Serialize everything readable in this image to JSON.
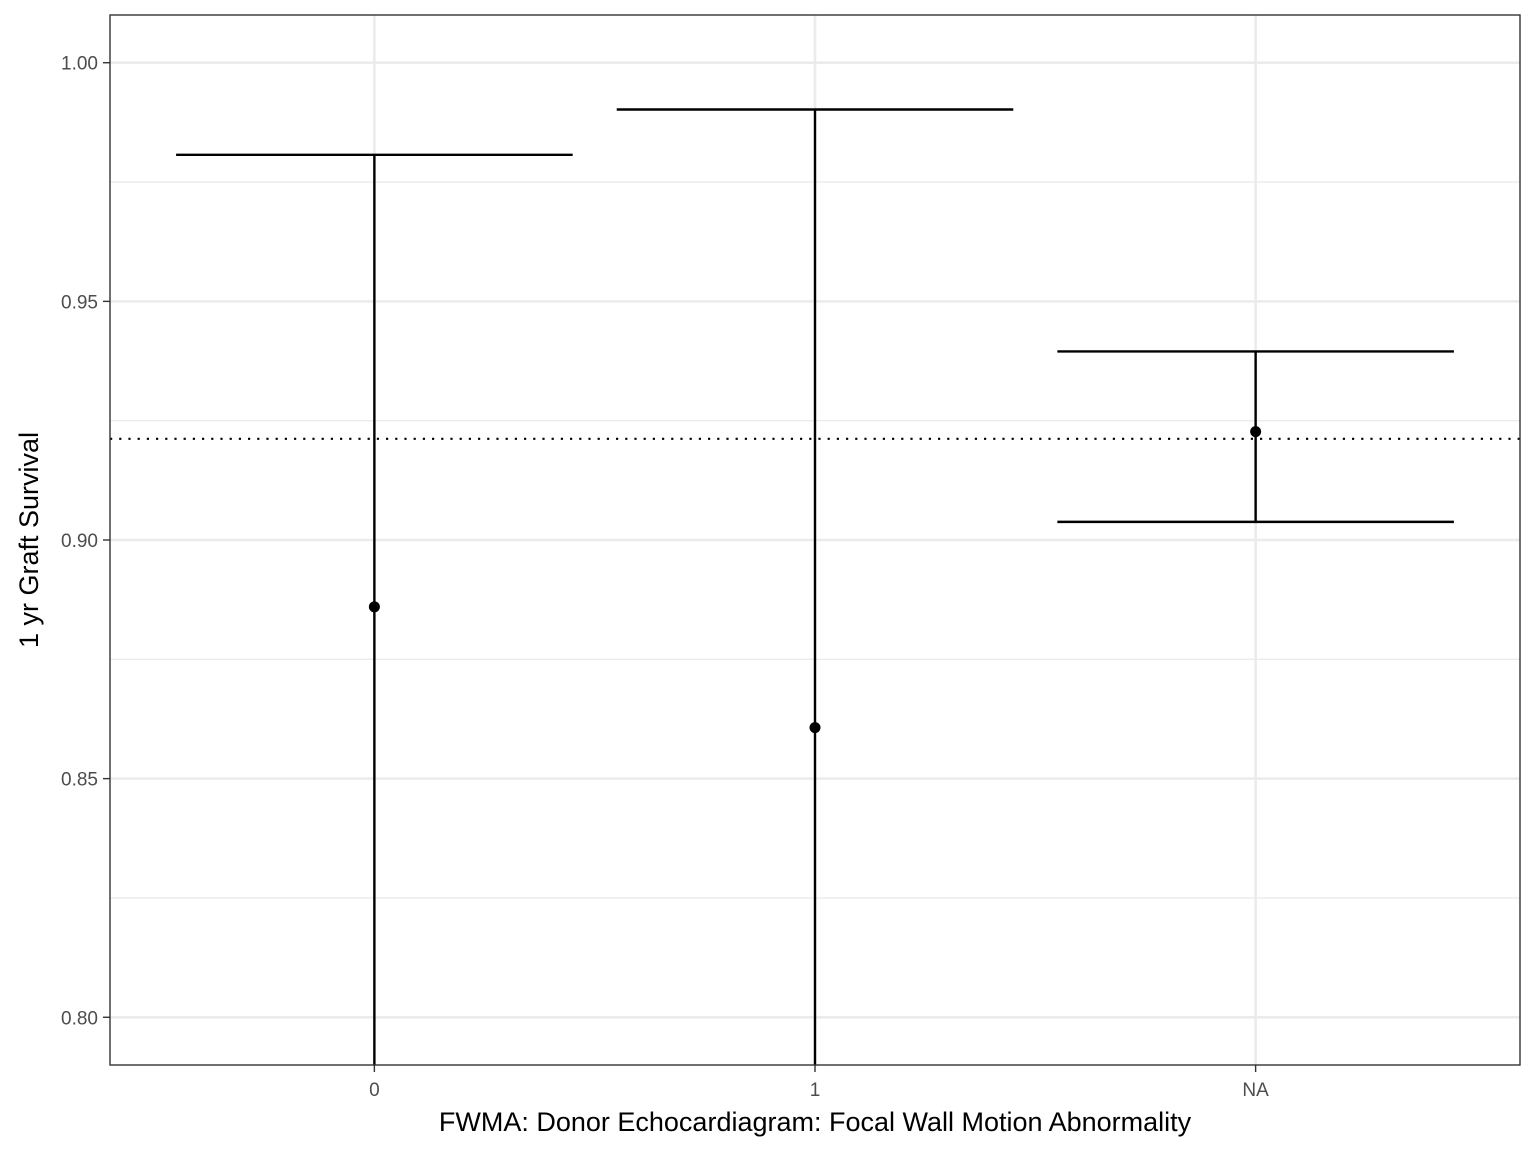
{
  "chart_data": {
    "type": "errorbar",
    "xlabel": "FWMA: Donor Echocardiagram: Focal Wall Motion Abnormality",
    "ylabel": "1 yr Graft Survival",
    "categories": [
      "0",
      "1",
      "NA"
    ],
    "estimates": [
      0.886,
      0.8607,
      0.9227
    ],
    "lower": [
      0.79,
      0.79,
      0.9038
    ],
    "upper": [
      0.9807,
      0.9902,
      0.9395
    ],
    "reference_line": {
      "value": 0.9212,
      "style": "dotted"
    },
    "ylim": [
      0.79,
      1.01
    ],
    "y_ticks": [
      0.8,
      0.85,
      0.9,
      0.95,
      1.0
    ],
    "y_tick_labels": [
      "0.80",
      "0.85",
      "0.90",
      "0.95",
      "1.00"
    ],
    "grid": true,
    "legend": "none"
  }
}
